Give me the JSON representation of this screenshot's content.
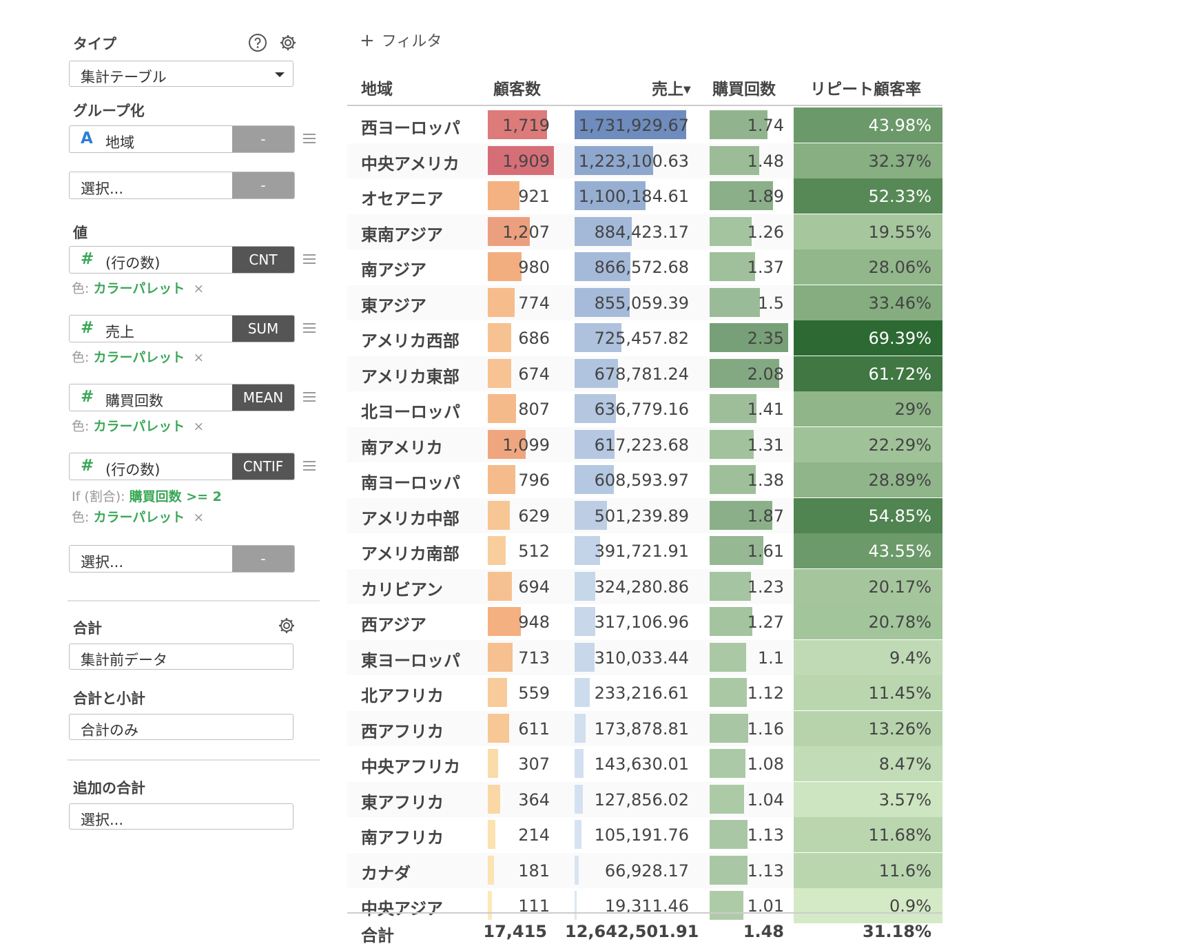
{
  "sidebar": {
    "type_title": "タイプ",
    "type_value": "集計テーブル",
    "grouping_title": "グループ化",
    "group_field": "地域",
    "group_field_agg": "-",
    "group_select_placeholder": "選択...",
    "group_select_agg": "-",
    "values_title": "値",
    "values": [
      {
        "icon": "#",
        "label": "(行の数)",
        "agg": "CNT",
        "color_prefix": "色:",
        "color_value": "カラーパレット",
        "remove": "×"
      },
      {
        "icon": "#",
        "label": "売上",
        "agg": "SUM",
        "color_prefix": "色:",
        "color_value": "カラーパレット",
        "remove": "×"
      },
      {
        "icon": "#",
        "label": "購買回数",
        "agg": "MEAN",
        "color_prefix": "色:",
        "color_value": "カラーパレット",
        "remove": "×"
      },
      {
        "icon": "#",
        "label": "(行の数)",
        "agg": "CNTIF",
        "if_prefix": "If (割合):",
        "if_value": "購買回数 >= 2",
        "color_prefix": "色:",
        "color_value": "カラーパレット",
        "remove": "×"
      }
    ],
    "value_select_placeholder": "選択...",
    "value_select_agg": "-",
    "total_title": "合計",
    "total_value": "集計前データ",
    "total_subtotal_title": "合計と小計",
    "total_subtotal_value": "合計のみ",
    "extra_total_title": "追加の合計",
    "extra_total_placeholder": "選択..."
  },
  "filter_label": "フィルタ",
  "table": {
    "headers": {
      "region": "地域",
      "customers": "顧客数",
      "sales": "売上",
      "purchases": "購買回数",
      "repeat": "リピート顧客率"
    },
    "rows": [
      {
        "region": "西ヨーロッパ",
        "customers": "1,719",
        "sales": "1,731,929.67",
        "purchases": "1.74",
        "repeat": "43.98%"
      },
      {
        "region": "中央アメリカ",
        "customers": "1,909",
        "sales": "1,223,100.63",
        "purchases": "1.48",
        "repeat": "32.37%"
      },
      {
        "region": "オセアニア",
        "customers": "921",
        "sales": "1,100,184.61",
        "purchases": "1.89",
        "repeat": "52.33%"
      },
      {
        "region": "東南アジア",
        "customers": "1,207",
        "sales": "884,423.17",
        "purchases": "1.26",
        "repeat": "19.55%"
      },
      {
        "region": "南アジア",
        "customers": "980",
        "sales": "866,572.68",
        "purchases": "1.37",
        "repeat": "28.06%"
      },
      {
        "region": "東アジア",
        "customers": "774",
        "sales": "855,059.39",
        "purchases": "1.5",
        "repeat": "33.46%"
      },
      {
        "region": "アメリカ西部",
        "customers": "686",
        "sales": "725,457.82",
        "purchases": "2.35",
        "repeat": "69.39%"
      },
      {
        "region": "アメリカ東部",
        "customers": "674",
        "sales": "678,781.24",
        "purchases": "2.08",
        "repeat": "61.72%"
      },
      {
        "region": "北ヨーロッパ",
        "customers": "807",
        "sales": "636,779.16",
        "purchases": "1.41",
        "repeat": "29%"
      },
      {
        "region": "南アメリカ",
        "customers": "1,099",
        "sales": "617,223.68",
        "purchases": "1.31",
        "repeat": "22.29%"
      },
      {
        "region": "南ヨーロッパ",
        "customers": "796",
        "sales": "608,593.97",
        "purchases": "1.38",
        "repeat": "28.89%"
      },
      {
        "region": "アメリカ中部",
        "customers": "629",
        "sales": "501,239.89",
        "purchases": "1.87",
        "repeat": "54.85%"
      },
      {
        "region": "アメリカ南部",
        "customers": "512",
        "sales": "391,721.91",
        "purchases": "1.61",
        "repeat": "43.55%"
      },
      {
        "region": "カリビアン",
        "customers": "694",
        "sales": "324,280.86",
        "purchases": "1.23",
        "repeat": "20.17%"
      },
      {
        "region": "西アジア",
        "customers": "948",
        "sales": "317,106.96",
        "purchases": "1.27",
        "repeat": "20.78%"
      },
      {
        "region": "東ヨーロッパ",
        "customers": "713",
        "sales": "310,033.44",
        "purchases": "1.1",
        "repeat": "9.4%"
      },
      {
        "region": "北アフリカ",
        "customers": "559",
        "sales": "233,216.61",
        "purchases": "1.12",
        "repeat": "11.45%"
      },
      {
        "region": "西アフリカ",
        "customers": "611",
        "sales": "173,878.81",
        "purchases": "1.16",
        "repeat": "13.26%"
      },
      {
        "region": "中央アフリカ",
        "customers": "307",
        "sales": "143,630.01",
        "purchases": "1.08",
        "repeat": "8.47%"
      },
      {
        "region": "東アフリカ",
        "customers": "364",
        "sales": "127,856.02",
        "purchases": "1.04",
        "repeat": "3.57%"
      },
      {
        "region": "南アフリカ",
        "customers": "214",
        "sales": "105,191.76",
        "purchases": "1.13",
        "repeat": "11.68%"
      },
      {
        "region": "カナダ",
        "customers": "181",
        "sales": "66,928.17",
        "purchases": "1.13",
        "repeat": "11.6%"
      },
      {
        "region": "中央アジア",
        "customers": "111",
        "sales": "19,311.46",
        "purchases": "1.01",
        "repeat": "0.9%"
      }
    ],
    "footer": {
      "label": "合計",
      "customers": "17,415",
      "sales": "12,642,501.91",
      "purchases": "1.48",
      "repeat": "31.18%"
    }
  }
}
